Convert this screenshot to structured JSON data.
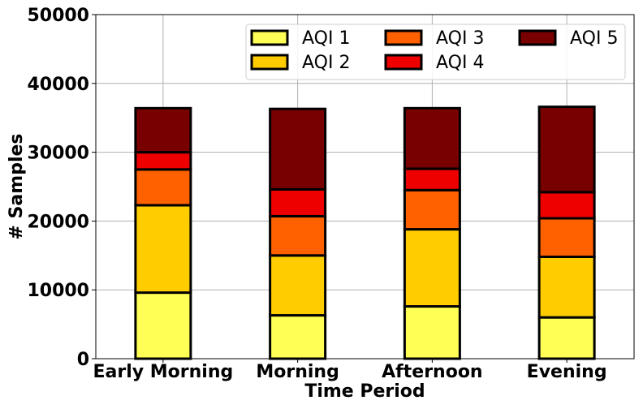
{
  "chart_data": {
    "type": "bar",
    "stacked": true,
    "xlabel": "Time Period",
    "ylabel": "# Samples",
    "categories": [
      "Early Morning",
      "Morning",
      "Afternoon",
      "Evening"
    ],
    "ylim": [
      0,
      50000
    ],
    "yticks": [
      0,
      10000,
      20000,
      30000,
      40000,
      50000
    ],
    "ytick_labels": [
      "0",
      "10000",
      "20000",
      "30000",
      "40000",
      "50000"
    ],
    "grid": true,
    "legend_position": "top-right",
    "series": [
      {
        "name": "AQI 1",
        "color": "#ffff55",
        "values": [
          9600,
          6300,
          7600,
          6000
        ]
      },
      {
        "name": "AQI 2",
        "color": "#ffcc00",
        "values": [
          12700,
          8700,
          11200,
          8800
        ]
      },
      {
        "name": "AQI 3",
        "color": "#ff6000",
        "values": [
          5200,
          5700,
          5700,
          5600
        ]
      },
      {
        "name": "AQI 4",
        "color": "#ee0000",
        "values": [
          2500,
          3900,
          3100,
          3800
        ]
      },
      {
        "name": "AQI 5",
        "color": "#780000",
        "values": [
          6400,
          11700,
          8800,
          12400
        ]
      }
    ]
  }
}
